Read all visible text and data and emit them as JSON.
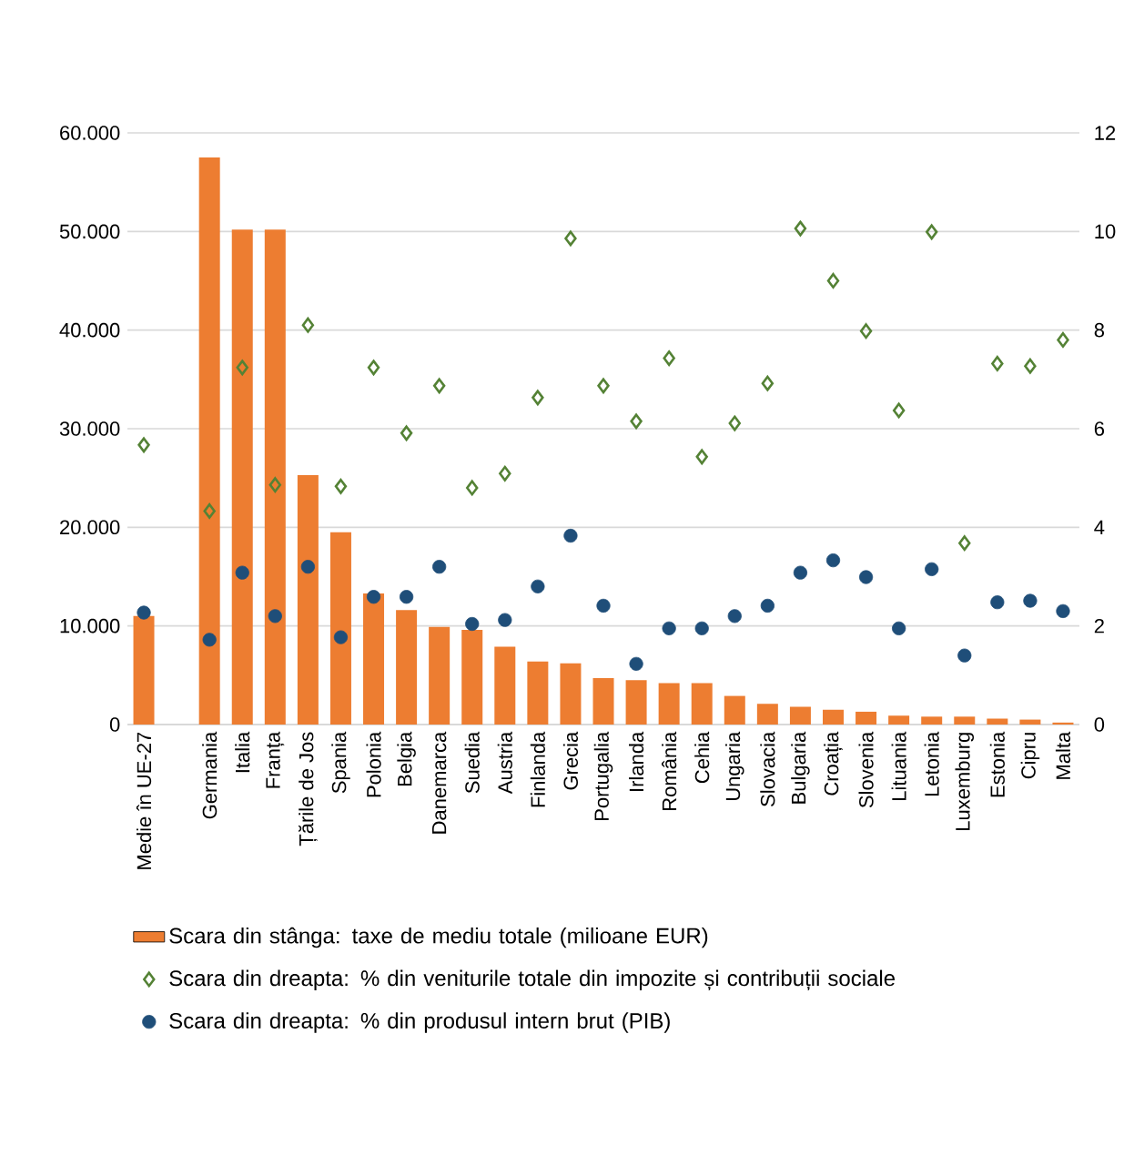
{
  "chart_data": {
    "type": "bar",
    "categories": [
      "Medie în UE-27",
      null,
      "Germania",
      "Italia",
      "Franța",
      "Țările de Jos",
      "Spania",
      "Polonia",
      "Belgia",
      "Danemarca",
      "Suedia",
      "Austria",
      "Finlanda",
      "Grecia",
      "Portugalia",
      "Irlanda",
      "România",
      "Cehia",
      "Ungaria",
      "Slovacia",
      "Bulgaria",
      "Croația",
      "Slovenia",
      "Lituania",
      "Letonia",
      "Luxemburg",
      "Estonia",
      "Cipru",
      "Malta"
    ],
    "series": [
      {
        "name": "Scara din stânga: taxe de mediu totale (milioane EUR)",
        "color": "#ed7d31",
        "values": [
          11000,
          null,
          57500,
          50200,
          50200,
          25300,
          19500,
          13300,
          11600,
          9900,
          9600,
          7900,
          6400,
          6200,
          4700,
          4500,
          4200,
          4200,
          2900,
          2100,
          1800,
          1500,
          1300,
          900,
          800,
          800,
          600,
          500,
          200
        ]
      },
      {
        "name": "Scara din dreapta: % din veniturile totale din impozite și contribuții sociale",
        "type": "scatter",
        "axis": "y2",
        "marker": "diamond",
        "color": "#548235",
        "values": [
          5.67,
          null,
          4.33,
          7.24,
          4.86,
          8.1,
          4.83,
          7.24,
          5.91,
          6.87,
          4.8,
          5.09,
          6.63,
          9.86,
          6.87,
          6.15,
          7.43,
          5.43,
          6.11,
          6.92,
          10.06,
          9.0,
          7.98,
          6.37,
          9.99,
          3.68,
          7.32,
          7.27,
          7.8
        ]
      },
      {
        "name": "Scara din dreapta: % din produsul intern brut (PIB)",
        "type": "scatter",
        "axis": "y2",
        "marker": "circle",
        "color": "#1f4e79",
        "values": [
          2.27,
          null,
          1.72,
          3.08,
          2.2,
          3.2,
          1.77,
          2.59,
          2.59,
          3.2,
          2.04,
          2.12,
          2.8,
          3.83,
          2.41,
          1.23,
          1.95,
          1.95,
          2.2,
          2.41,
          3.08,
          3.33,
          2.99,
          1.95,
          3.15,
          1.4,
          2.48,
          2.51,
          2.3
        ]
      }
    ],
    "ylim": [
      0,
      60000
    ],
    "yticks": [
      0,
      {
        "value": 10000,
        "label": "10.000"
      },
      {
        "value": 20000,
        "label": "20.000"
      },
      {
        "value": 30000,
        "label": "30.000"
      },
      {
        "value": 40000,
        "label": "40.000"
      },
      {
        "value": 50000,
        "label": "50.000"
      },
      {
        "value": 60000,
        "label": "60.000"
      }
    ],
    "y2lim": [
      0,
      12
    ],
    "y2ticks": [
      0,
      2,
      4,
      6,
      8,
      10,
      12
    ],
    "grid": "y",
    "legend": "bottom"
  }
}
